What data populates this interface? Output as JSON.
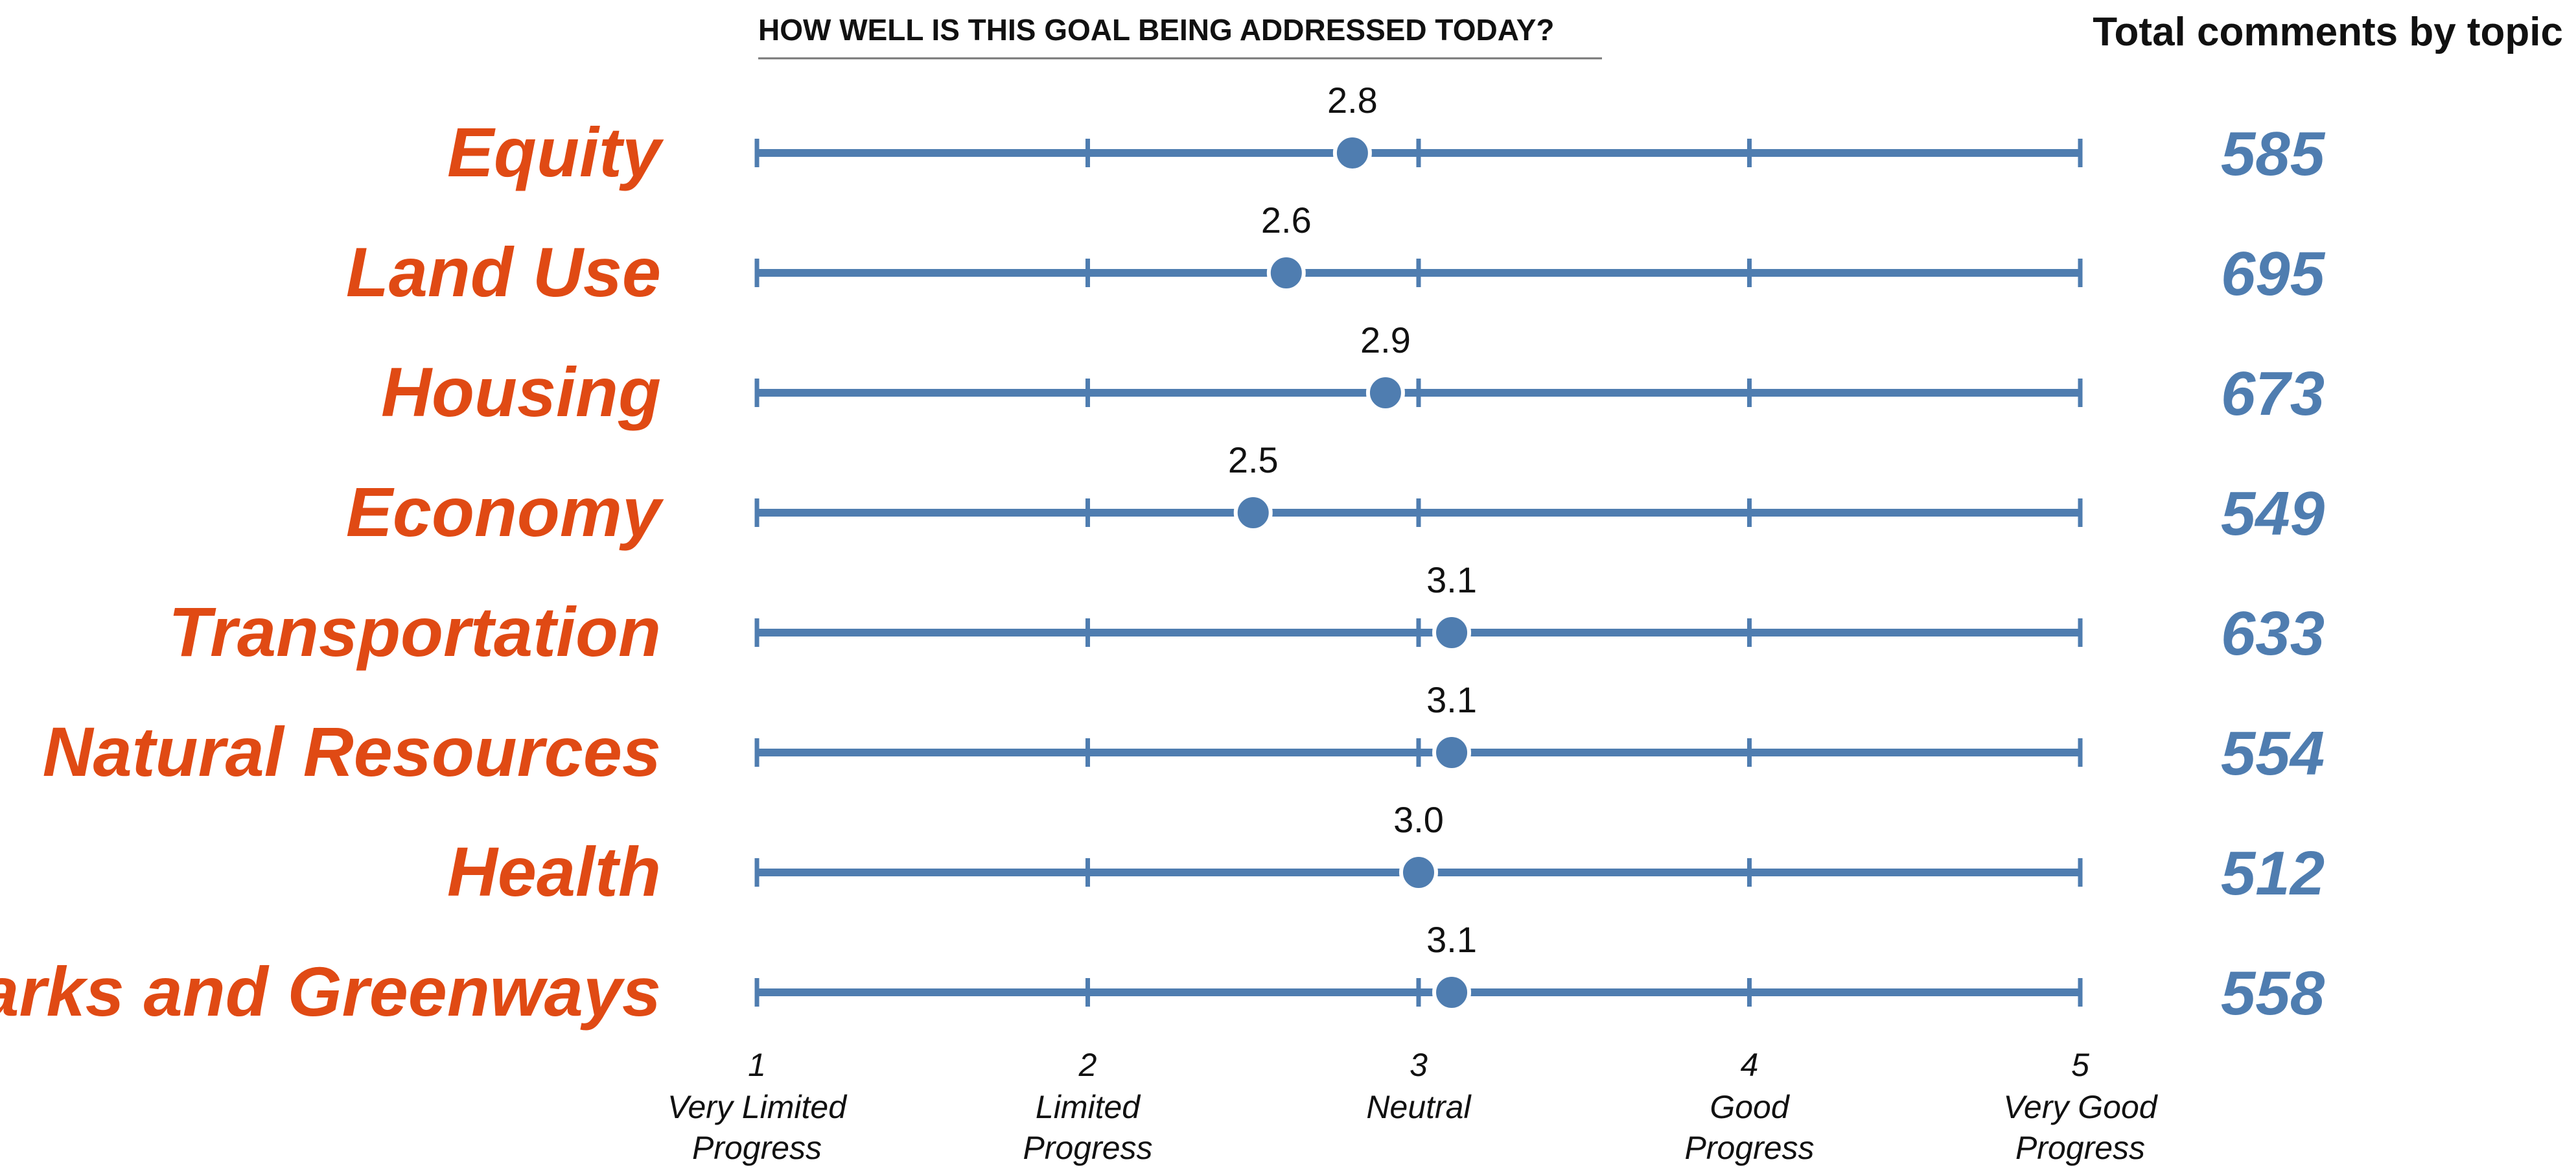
{
  "colors": {
    "label_orange": "#E04A14",
    "line_blue": "#4F7DB0",
    "text_dark": "#111111",
    "title_rule": "#777777"
  },
  "chart_data": {
    "type": "dot",
    "title": "HOW WELL IS THIS GOAL BEING ADDRESSED TODAY?",
    "right_header": "Total comments by topic",
    "xlim": [
      1,
      5
    ],
    "x_ticks": [
      {
        "value": 1,
        "number": "1",
        "line1": "Very Limited",
        "line2": "Progress"
      },
      {
        "value": 2,
        "number": "2",
        "line1": "Limited",
        "line2": "Progress"
      },
      {
        "value": 3,
        "number": "3",
        "line1": "Neutral",
        "line2": ""
      },
      {
        "value": 4,
        "number": "4",
        "line1": "Good",
        "line2": "Progress"
      },
      {
        "value": 5,
        "number": "5",
        "line1": "Very Good",
        "line2": "Progress"
      }
    ],
    "categories": [
      "Equity",
      "Land Use",
      "Housing",
      "Economy",
      "Transportation",
      "Natural Resources",
      "Health",
      "Parks and Greenways"
    ],
    "values": [
      2.8,
      2.6,
      2.9,
      2.5,
      3.1,
      3.1,
      3.0,
      3.1
    ],
    "value_labels": [
      "2.8",
      "2.6",
      "2.9",
      "2.5",
      "3.1",
      "3.1",
      "3.0",
      "3.1"
    ],
    "comment_counts": [
      "585",
      "695",
      "673",
      "549",
      "633",
      "554",
      "512",
      "558"
    ]
  }
}
